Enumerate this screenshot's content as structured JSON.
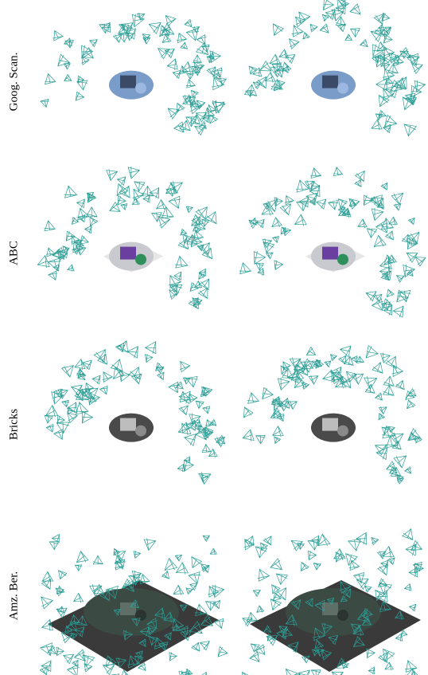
{
  "rows": [
    {
      "label": "Goog. Scan."
    },
    {
      "label": "ABC"
    },
    {
      "label": "Bricks"
    },
    {
      "label": "Amz. Ber."
    }
  ]
}
